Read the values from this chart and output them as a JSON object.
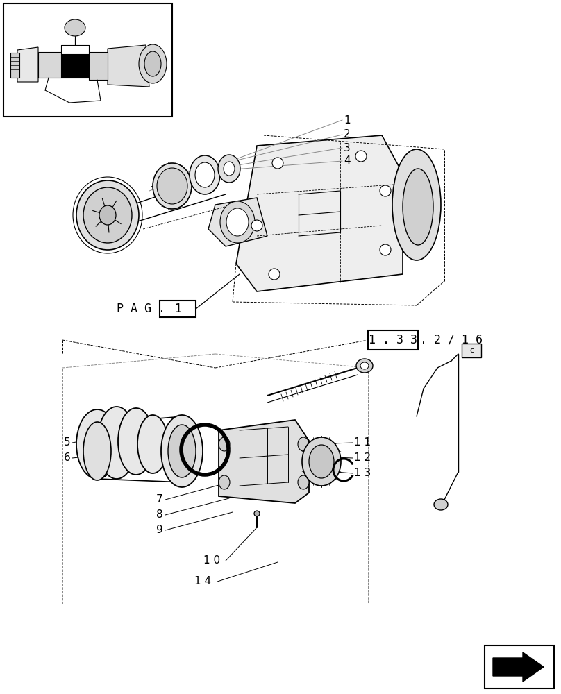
{
  "background_color": "#ffffff",
  "line_color": "#000000",
  "gray_color": "#888888",
  "light_gray": "#cccccc",
  "dark_gray": "#555555",
  "page_ref_text": "P A G .",
  "page_ref_num": "1",
  "part_ref_text": "1 . 3 3",
  "part_ref_suffix": ". 2 / 1 6",
  "upper_labels": [
    "1",
    "2",
    "3",
    "4"
  ],
  "lower_labels_left": [
    "5",
    "6"
  ],
  "lower_labels_mid": [
    "7",
    "8",
    "9"
  ],
  "lower_labels_right": [
    "1 1",
    "1 2",
    "1 3"
  ],
  "label_10": "1 0",
  "label_14": "1 4"
}
